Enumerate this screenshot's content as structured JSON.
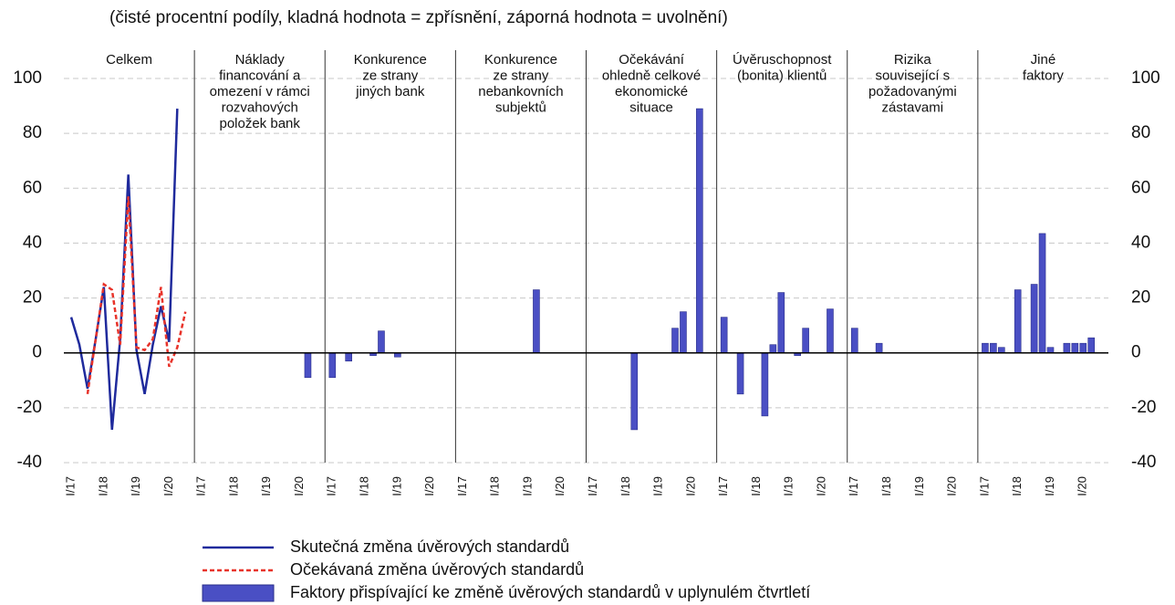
{
  "chart_data": {
    "type": "bar",
    "subtitle": "(čisté procentní podíly, kladná hodnota = zpřísnění, záporná hodnota = uvolnění)",
    "ylim": [
      -40,
      100
    ],
    "yticks": [
      -40,
      -20,
      0,
      20,
      40,
      60,
      80,
      100
    ],
    "grid": true,
    "categories": [
      "I/17",
      null,
      null,
      null,
      "I/18",
      null,
      null,
      null,
      "I/19",
      null,
      null,
      null,
      "I/20",
      null,
      null
    ],
    "panels": [
      {
        "title": [
          "Celkem"
        ]
      },
      {
        "title": [
          "Náklady",
          "financování a",
          "omezení v rámci",
          "rozvahových",
          "položek bank"
        ]
      },
      {
        "title": [
          "Konkurence",
          "ze strany",
          "jiných bank"
        ]
      },
      {
        "title": [
          "Konkurence",
          "ze strany",
          "nebankovních",
          "subjektů"
        ]
      },
      {
        "title": [
          "Očekávání",
          "ohledně celkové",
          "ekonomické",
          "situace"
        ]
      },
      {
        "title": [
          "Úvěruschopnost",
          "(bonita) klientů"
        ]
      },
      {
        "title": [
          "Rizika",
          "související s",
          "požadovanými",
          "zástavami"
        ]
      },
      {
        "title": [
          "Jiné",
          "faktory"
        ]
      }
    ],
    "series": [
      {
        "name": "Skutečná změna úvěrových standardů",
        "color": "#1f2a9c",
        "style": "solid",
        "values": [
          13,
          3,
          -13,
          5,
          24,
          -28,
          5,
          65,
          1,
          -15,
          3,
          17,
          4,
          89,
          null
        ]
      },
      {
        "name": "Očekávaná změna úvěrových standardů",
        "color": "#e8332a",
        "style": "dashed",
        "values": [
          null,
          null,
          -15,
          5,
          25,
          23,
          3,
          57,
          2,
          1,
          5,
          24,
          -5,
          2,
          15
        ]
      },
      {
        "name": "Faktory přispívající ke změně úvěrových standardů v uplynulém čtvrtletí",
        "color": "#4a4fc4",
        "style": "bar",
        "values": [
          [
            null,
            null,
            null,
            null,
            null,
            null,
            null,
            null,
            null,
            null,
            null,
            null,
            null,
            null,
            null
          ],
          [
            null,
            null,
            null,
            null,
            null,
            null,
            null,
            null,
            null,
            null,
            null,
            null,
            null,
            -9,
            null
          ],
          [
            -9,
            null,
            -3,
            null,
            null,
            -1,
            8,
            null,
            -1.5,
            null,
            null,
            null,
            null,
            null,
            null
          ],
          [
            null,
            null,
            null,
            null,
            null,
            null,
            null,
            null,
            null,
            23,
            null,
            null,
            null,
            null,
            null
          ],
          [
            null,
            null,
            null,
            null,
            null,
            -28,
            null,
            null,
            null,
            null,
            9,
            15,
            null,
            89,
            null
          ],
          [
            13,
            null,
            -15,
            null,
            null,
            -23,
            3,
            22,
            null,
            -1,
            9,
            null,
            null,
            16,
            null
          ],
          [
            9,
            null,
            null,
            3.5,
            null,
            null,
            null,
            null,
            null,
            null,
            null,
            null,
            null,
            null,
            null
          ],
          [
            3.5,
            3.5,
            2,
            null,
            23,
            null,
            25,
            43.5,
            2,
            null,
            3.5,
            3.5,
            3.5,
            5.5,
            null
          ]
        ]
      }
    ]
  }
}
